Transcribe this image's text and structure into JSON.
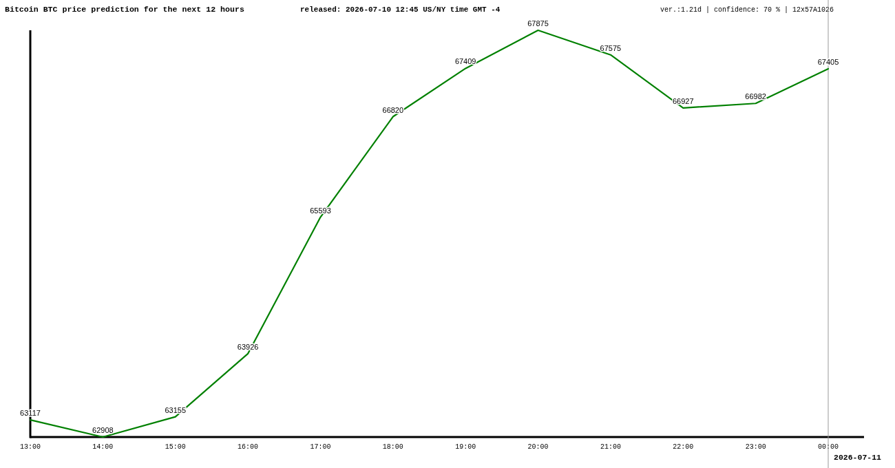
{
  "chart_data": {
    "type": "line",
    "title": "Bitcoin BTC price prediction for the next 12 hours",
    "subtitle": "released: 2026-07-10 12:45 US/NY time GMT -4",
    "annotations": [
      "ver.:1.21d | confidence: 70 % | 12x57A1026"
    ],
    "categories": [
      "13:00",
      "14:00",
      "15:00",
      "16:00",
      "17:00",
      "18:00",
      "19:00",
      "20:00",
      "21:00",
      "22:00",
      "23:00",
      "00:00"
    ],
    "series": [
      {
        "color": "#008000",
        "values": [
          63117,
          62908,
          63155,
          63926,
          65593,
          66820,
          67409,
          67875,
          67575,
          66927,
          66982,
          67405
        ]
      }
    ],
    "ylim": [
      62908,
      67875
    ],
    "tick_labels": "x",
    "data_labels": true,
    "line_style": "solid",
    "ref_lines": [
      {
        "axis": "x",
        "value": "00:00",
        "label": "2026-07-11",
        "color": "#999999"
      }
    ]
  }
}
